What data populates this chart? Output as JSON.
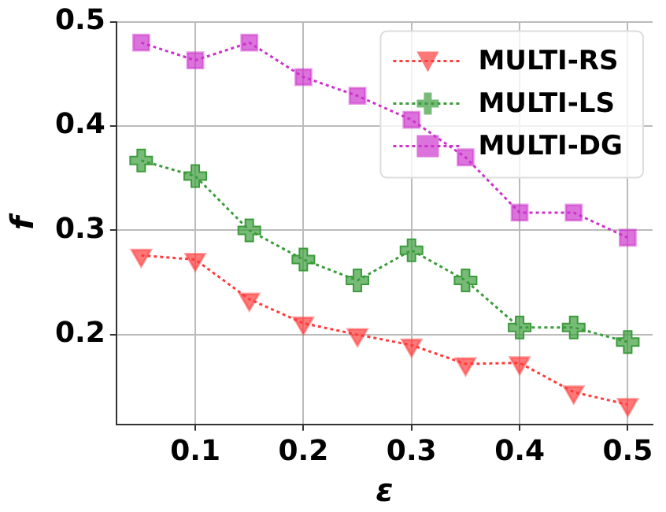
{
  "chart_data": {
    "type": "line",
    "xlabel": "ε",
    "ylabel": "f",
    "x": [
      0.05,
      0.1,
      0.15,
      0.2,
      0.25,
      0.3,
      0.35,
      0.4,
      0.45,
      0.5
    ],
    "series": [
      {
        "name": "MULTI-RS",
        "color": "#ff3b3b",
        "marker": "triangle",
        "values": [
          0.276,
          0.272,
          0.234,
          0.211,
          0.2,
          0.19,
          0.172,
          0.173,
          0.145,
          0.133
        ]
      },
      {
        "name": "MULTI-LS",
        "color": "#3c9c3c",
        "marker": "cross",
        "values": [
          0.367,
          0.352,
          0.3,
          0.272,
          0.252,
          0.281,
          0.252,
          0.207,
          0.207,
          0.193
        ]
      },
      {
        "name": "MULTI-DG",
        "color": "#cc33cc",
        "marker": "square",
        "values": [
          0.48,
          0.463,
          0.48,
          0.447,
          0.429,
          0.406,
          0.37,
          0.317,
          0.317,
          0.293
        ]
      }
    ],
    "xlim": [
      0.027,
      0.523
    ],
    "xticks": [
      0.1,
      0.2,
      0.3,
      0.4,
      0.5
    ],
    "ylim": [
      0.114,
      0.5
    ],
    "yticks": [
      0.2,
      0.3,
      0.4,
      0.5
    ],
    "grid": true,
    "legend": "top right",
    "line_style": "dotted"
  }
}
